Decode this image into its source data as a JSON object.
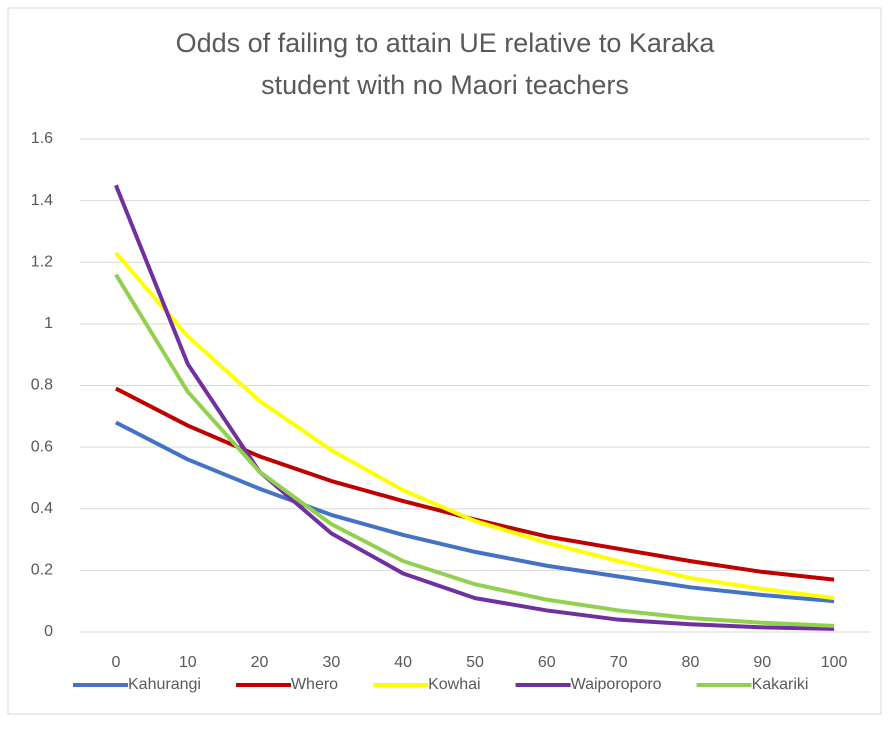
{
  "chart_data": {
    "type": "line",
    "title": "Odds of failing to attain UE relative to Karaka student with no Maori teachers",
    "categories": [
      "0",
      "10",
      "20",
      "30",
      "40",
      "50",
      "60",
      "70",
      "80",
      "90",
      "100"
    ],
    "series": [
      {
        "name": "Kahurangi",
        "color": "#4472c4",
        "values": [
          0.68,
          0.56,
          0.465,
          0.38,
          0.315,
          0.26,
          0.215,
          0.18,
          0.145,
          0.12,
          0.1
        ]
      },
      {
        "name": "Whero",
        "color": "#c00000",
        "values": [
          0.79,
          0.67,
          0.57,
          0.49,
          0.425,
          0.365,
          0.31,
          0.27,
          0.23,
          0.195,
          0.17
        ]
      },
      {
        "name": "Kowhai",
        "color": "#ffff00",
        "values": [
          1.23,
          0.96,
          0.75,
          0.59,
          0.46,
          0.36,
          0.29,
          0.23,
          0.175,
          0.14,
          0.11
        ]
      },
      {
        "name": "Waiporoporo",
        "color": "#7030a0",
        "values": [
          1.45,
          0.87,
          0.52,
          0.32,
          0.19,
          0.11,
          0.07,
          0.04,
          0.025,
          0.015,
          0.01
        ]
      },
      {
        "name": "Kakariki",
        "color": "#92d050",
        "values": [
          1.16,
          0.78,
          0.52,
          0.35,
          0.23,
          0.155,
          0.105,
          0.07,
          0.045,
          0.03,
          0.02
        ]
      }
    ],
    "ylim": [
      0,
      1.6
    ],
    "yticks": [
      0,
      0.2,
      0.4,
      0.6,
      0.8,
      1,
      1.2,
      1.4,
      1.6
    ],
    "grid": true,
    "legend": "bottom"
  }
}
